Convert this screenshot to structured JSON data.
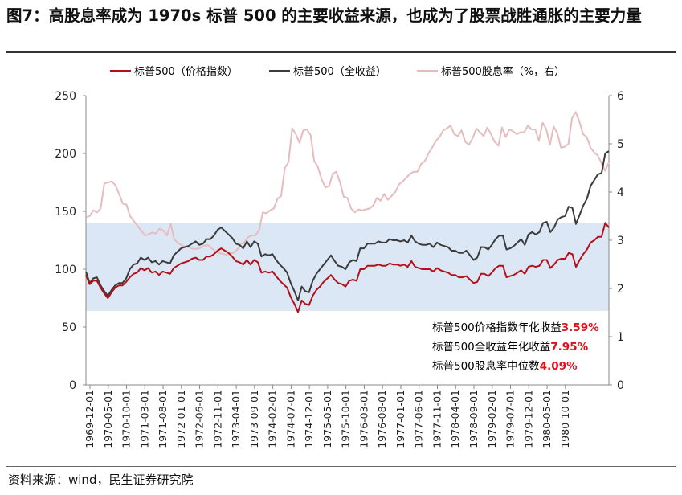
{
  "header": {
    "title": "图7：高股息率成为 1970s 标普 500 的主要收益来源，也成为了股票战胜通胀的主要力量"
  },
  "footer": {
    "source": "资料来源：wind，民生证券研究院"
  },
  "colors": {
    "price": "#b3101a",
    "total": "#3b3b3b",
    "yield": "#e6bcbd",
    "band": "#dbe7f4",
    "annotation_value": "#e0101a"
  },
  "chart_data": {
    "type": "line",
    "legend_position": "top",
    "grid": false,
    "xlabel": "",
    "ylabel": "",
    "ylim": [
      0,
      250
    ],
    "y2lim": [
      0,
      6
    ],
    "yticks": [
      0,
      50,
      100,
      150,
      200,
      250
    ],
    "y2ticks": [
      0,
      1,
      2,
      3,
      4,
      5,
      6
    ],
    "x_tick_labels": [
      "1969-12-01",
      "1970-05-01",
      "1970-10-01",
      "1971-03-01",
      "1971-08-01",
      "1972-01-01",
      "1972-06-01",
      "1972-11-01",
      "1973-04-01",
      "1973-09-01",
      "1974-02-01",
      "1974-07-01",
      "1974-12-01",
      "1975-05-01",
      "1975-10-01",
      "1976-03-01",
      "1976-08-01",
      "1977-01-01",
      "1977-06-01",
      "1977-11-01",
      "1978-04-01",
      "1978-09-01",
      "1979-02-01",
      "1979-07-01",
      "1979-12-01",
      "1980-05-01",
      "1980-10-01"
    ],
    "shaded_band": {
      "y_from": 64,
      "y_to": 140
    },
    "series": [
      {
        "name": "标普500（价格指数）",
        "axis": "left",
        "color": "#b3101a",
        "values": [
          95,
          87,
          90,
          90,
          84,
          79,
          75,
          80,
          84,
          86,
          86,
          89,
          93,
          96,
          97,
          101,
          99,
          101,
          97,
          98,
          95,
          98,
          97,
          96,
          101,
          103,
          105,
          106,
          107,
          109,
          110,
          108,
          108,
          111,
          111,
          113,
          116,
          118,
          116,
          114,
          111,
          107,
          106,
          104,
          108,
          104,
          108,
          106,
          97,
          98,
          97,
          98,
          94,
          90,
          87,
          84,
          76,
          70,
          63,
          73,
          70,
          69,
          77,
          82,
          85,
          89,
          92,
          95,
          91,
          88,
          87,
          85,
          90,
          91,
          90,
          100,
          100,
          103,
          103,
          103,
          104,
          103,
          103,
          105,
          104,
          104,
          103,
          104,
          102,
          107,
          102,
          101,
          100,
          100,
          100,
          98,
          101,
          99,
          98,
          97,
          95,
          95,
          93,
          93,
          94,
          91,
          88,
          89,
          96,
          96,
          94,
          97,
          101,
          103,
          103,
          93,
          94,
          95,
          97,
          99,
          96,
          102,
          103,
          102,
          103,
          108,
          108,
          101,
          104,
          108,
          109,
          109,
          114,
          113,
          102,
          108,
          113,
          117,
          123,
          125,
          128,
          128,
          140,
          136
        ]
      },
      {
        "name": "标普500（全收益）",
        "axis": "left",
        "color": "#3b3b3b",
        "values": [
          98,
          88,
          92,
          93,
          86,
          81,
          77,
          82,
          86,
          88,
          88,
          92,
          100,
          104,
          105,
          110,
          108,
          110,
          106,
          107,
          104,
          107,
          106,
          105,
          112,
          115,
          118,
          119,
          120,
          122,
          124,
          121,
          122,
          126,
          126,
          129,
          134,
          136,
          133,
          130,
          127,
          122,
          121,
          118,
          124,
          119,
          124,
          122,
          111,
          113,
          112,
          113,
          108,
          104,
          101,
          97,
          88,
          81,
          73,
          85,
          81,
          80,
          90,
          96,
          100,
          104,
          108,
          112,
          107,
          103,
          102,
          100,
          106,
          108,
          107,
          118,
          118,
          122,
          122,
          122,
          124,
          123,
          123,
          126,
          125,
          125,
          124,
          125,
          123,
          129,
          124,
          122,
          121,
          121,
          122,
          119,
          123,
          121,
          120,
          119,
          116,
          116,
          114,
          114,
          116,
          112,
          108,
          110,
          119,
          119,
          117,
          121,
          126,
          129,
          129,
          117,
          118,
          120,
          123,
          126,
          121,
          130,
          132,
          130,
          132,
          140,
          141,
          132,
          136,
          143,
          145,
          146,
          154,
          153,
          139,
          147,
          155,
          161,
          172,
          177,
          182,
          183,
          200,
          202
        ]
      },
      {
        "name": "标普500股息率（%，右）",
        "axis": "right",
        "color": "#e6bcbd",
        "values": [
          3.48,
          3.5,
          3.62,
          3.58,
          3.66,
          4.18,
          4.2,
          4.22,
          4.14,
          3.96,
          3.76,
          3.74,
          3.5,
          3.4,
          3.3,
          3.2,
          3.1,
          3.12,
          3.16,
          3.14,
          3.24,
          3.2,
          3.1,
          3.34,
          3.02,
          2.94,
          2.9,
          2.86,
          2.86,
          2.82,
          2.82,
          2.84,
          2.88,
          2.9,
          2.84,
          2.78,
          2.74,
          2.72,
          2.7,
          2.72,
          2.74,
          2.8,
          2.92,
          2.96,
          3.06,
          3.1,
          3.1,
          3.2,
          3.58,
          3.56,
          3.62,
          3.66,
          3.86,
          3.92,
          4.5,
          4.62,
          5.32,
          5.2,
          5.02,
          5.28,
          5.3,
          5.18,
          4.64,
          4.52,
          4.26,
          4.1,
          4.12,
          4.38,
          4.42,
          4.2,
          3.9,
          3.88,
          3.66,
          3.58,
          3.64,
          3.62,
          3.64,
          3.66,
          3.72,
          3.88,
          3.82,
          3.96,
          3.84,
          3.92,
          4.0,
          4.16,
          4.22,
          4.3,
          4.38,
          4.42,
          4.42,
          4.58,
          4.64,
          4.8,
          4.92,
          5.06,
          5.14,
          5.28,
          5.32,
          5.38,
          5.2,
          5.16,
          5.28,
          5.04,
          4.98,
          5.12,
          5.32,
          5.24,
          5.16,
          5.34,
          5.2,
          5.04,
          4.96,
          5.34,
          5.14,
          5.3,
          5.26,
          5.2,
          5.24,
          5.24,
          5.38,
          5.3,
          5.3,
          5.06,
          5.44,
          5.3,
          4.98,
          5.36,
          5.22,
          4.92,
          4.94,
          5.0,
          5.54,
          5.66,
          5.46,
          5.2,
          5.14,
          4.92,
          4.82,
          4.76,
          4.6,
          4.44,
          4.62
        ]
      }
    ],
    "annotations": [
      {
        "label": "标普500价格指数年化收益",
        "value": "3.59%"
      },
      {
        "label": "标普500全收益年化收益",
        "value": "7.95%"
      },
      {
        "label": "标普500股息率中位数",
        "value": "4.09%"
      }
    ]
  }
}
